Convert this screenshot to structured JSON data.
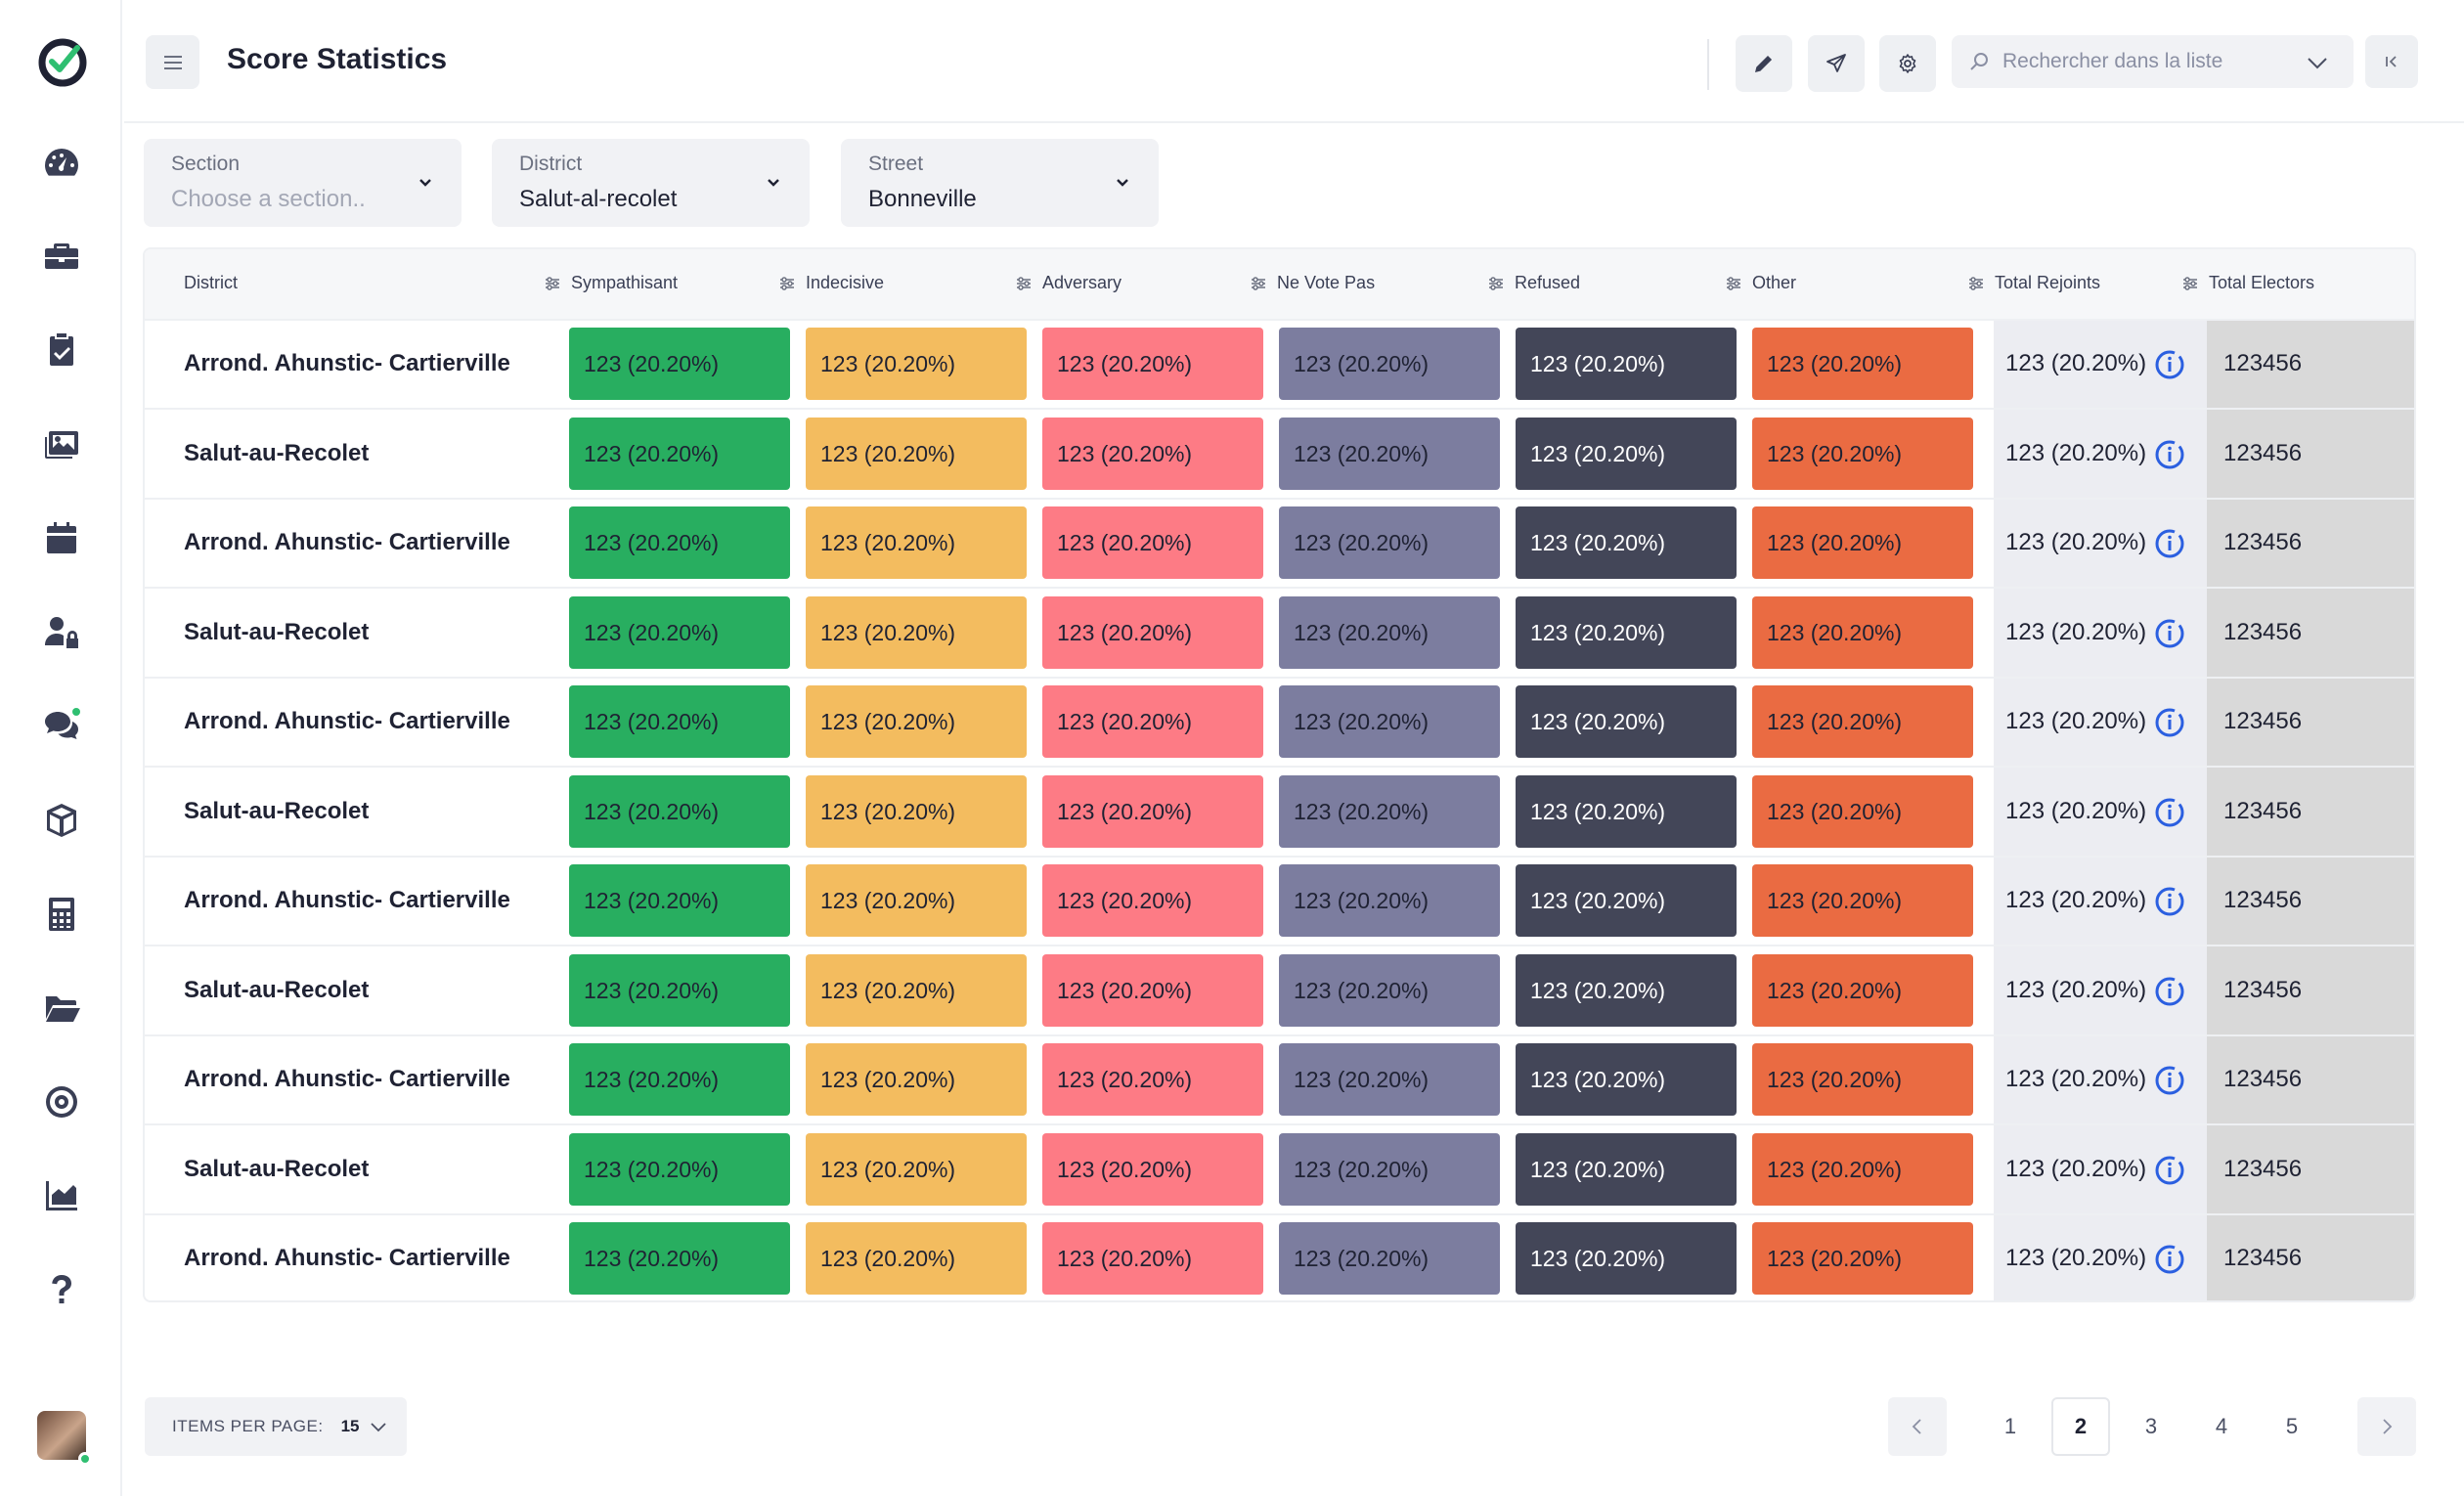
{
  "header": {
    "title": "Score Statistics",
    "search_placeholder": "Rechercher dans la liste"
  },
  "sidebar": {
    "items": [
      {
        "icon": "dashboard-icon"
      },
      {
        "icon": "briefcase-icon"
      },
      {
        "icon": "clipboard-check-icon"
      },
      {
        "icon": "images-icon"
      },
      {
        "icon": "calendar-icon"
      },
      {
        "icon": "user-lock-icon"
      },
      {
        "icon": "chat-icon"
      },
      {
        "icon": "box-icon"
      },
      {
        "icon": "calculator-icon"
      },
      {
        "icon": "folder-icon"
      },
      {
        "icon": "target-icon"
      },
      {
        "icon": "chart-icon"
      },
      {
        "icon": "help-icon"
      }
    ]
  },
  "filters": [
    {
      "label": "Section",
      "value": "Choose a section..",
      "is_placeholder": true
    },
    {
      "label": "District",
      "value": "Salut-al-recolet",
      "is_placeholder": false
    },
    {
      "label": "Street",
      "value": "Bonneville",
      "is_placeholder": false
    }
  ],
  "table": {
    "columns": [
      "District",
      "Sympathisant",
      "Indecisive",
      "Adversary",
      "Ne Vote Pas",
      "Refused",
      "Other",
      "Total Rejoints",
      "Total Electors"
    ],
    "colors": {
      "sympathisant": "#28ae60",
      "indecisive": "#f3bc5f",
      "adversary": "#fd7b85",
      "ne_vote_pas": "#7c7d9f",
      "refused": "#434658",
      "other": "#ea6b42",
      "total_rejoints_bg": "#ecedf2",
      "total_electors_bg": "#d9d9d9"
    },
    "rows": [
      {
        "district": "Arrond. Ahunstic- Cartierville",
        "sympathisant": "123 (20.20%)",
        "indecisive": "123 (20.20%)",
        "adversary": "123 (20.20%)",
        "ne_vote_pas": "123 (20.20%)",
        "refused": "123 (20.20%)",
        "other": "123 (20.20%)",
        "total_rejoints": "123 (20.20%)",
        "total_electors": "123456"
      },
      {
        "district": "Salut-au-Recolet",
        "sympathisant": "123 (20.20%)",
        "indecisive": "123 (20.20%)",
        "adversary": "123 (20.20%)",
        "ne_vote_pas": "123 (20.20%)",
        "refused": "123 (20.20%)",
        "other": "123 (20.20%)",
        "total_rejoints": "123 (20.20%)",
        "total_electors": "123456"
      },
      {
        "district": "Arrond. Ahunstic- Cartierville",
        "sympathisant": "123 (20.20%)",
        "indecisive": "123 (20.20%)",
        "adversary": "123 (20.20%)",
        "ne_vote_pas": "123 (20.20%)",
        "refused": "123 (20.20%)",
        "other": "123 (20.20%)",
        "total_rejoints": "123 (20.20%)",
        "total_electors": "123456"
      },
      {
        "district": "Salut-au-Recolet",
        "sympathisant": "123 (20.20%)",
        "indecisive": "123 (20.20%)",
        "adversary": "123 (20.20%)",
        "ne_vote_pas": "123 (20.20%)",
        "refused": "123 (20.20%)",
        "other": "123 (20.20%)",
        "total_rejoints": "123 (20.20%)",
        "total_electors": "123456"
      },
      {
        "district": "Arrond. Ahunstic- Cartierville",
        "sympathisant": "123 (20.20%)",
        "indecisive": "123 (20.20%)",
        "adversary": "123 (20.20%)",
        "ne_vote_pas": "123 (20.20%)",
        "refused": "123 (20.20%)",
        "other": "123 (20.20%)",
        "total_rejoints": "123 (20.20%)",
        "total_electors": "123456"
      },
      {
        "district": "Salut-au-Recolet",
        "sympathisant": "123 (20.20%)",
        "indecisive": "123 (20.20%)",
        "adversary": "123 (20.20%)",
        "ne_vote_pas": "123 (20.20%)",
        "refused": "123 (20.20%)",
        "other": "123 (20.20%)",
        "total_rejoints": "123 (20.20%)",
        "total_electors": "123456"
      },
      {
        "district": "Arrond. Ahunstic- Cartierville",
        "sympathisant": "123 (20.20%)",
        "indecisive": "123 (20.20%)",
        "adversary": "123 (20.20%)",
        "ne_vote_pas": "123 (20.20%)",
        "refused": "123 (20.20%)",
        "other": "123 (20.20%)",
        "total_rejoints": "123 (20.20%)",
        "total_electors": "123456"
      },
      {
        "district": "Salut-au-Recolet",
        "sympathisant": "123 (20.20%)",
        "indecisive": "123 (20.20%)",
        "adversary": "123 (20.20%)",
        "ne_vote_pas": "123 (20.20%)",
        "refused": "123 (20.20%)",
        "other": "123 (20.20%)",
        "total_rejoints": "123 (20.20%)",
        "total_electors": "123456"
      },
      {
        "district": "Arrond. Ahunstic- Cartierville",
        "sympathisant": "123 (20.20%)",
        "indecisive": "123 (20.20%)",
        "adversary": "123 (20.20%)",
        "ne_vote_pas": "123 (20.20%)",
        "refused": "123 (20.20%)",
        "other": "123 (20.20%)",
        "total_rejoints": "123 (20.20%)",
        "total_electors": "123456"
      },
      {
        "district": "Salut-au-Recolet",
        "sympathisant": "123 (20.20%)",
        "indecisive": "123 (20.20%)",
        "adversary": "123 (20.20%)",
        "ne_vote_pas": "123 (20.20%)",
        "refused": "123 (20.20%)",
        "other": "123 (20.20%)",
        "total_rejoints": "123 (20.20%)",
        "total_electors": "123456"
      },
      {
        "district": "Arrond. Ahunstic- Cartierville",
        "sympathisant": "123 (20.20%)",
        "indecisive": "123 (20.20%)",
        "adversary": "123 (20.20%)",
        "ne_vote_pas": "123 (20.20%)",
        "refused": "123 (20.20%)",
        "other": "123 (20.20%)",
        "total_rejoints": "123 (20.20%)",
        "total_electors": "123456"
      }
    ]
  },
  "footer": {
    "items_per_page_label": "ITEMS PER PAGE:",
    "items_per_page_value": "15",
    "pages": [
      "1",
      "2",
      "3",
      "4",
      "5"
    ],
    "current_page": "2"
  }
}
